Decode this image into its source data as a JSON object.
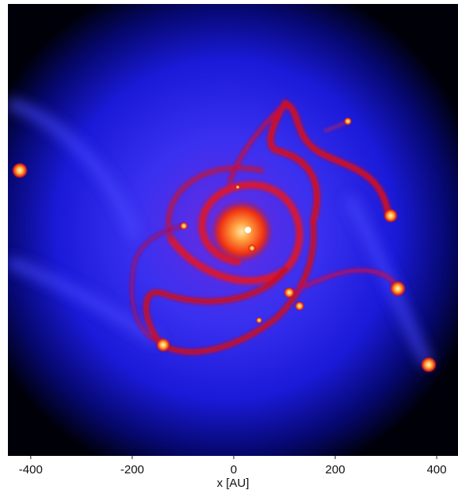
{
  "chart_data": {
    "type": "image",
    "x_label": "x [AU]",
    "xlim": [
      -445,
      442
    ],
    "xticks": [
      -400,
      -200,
      0,
      200,
      400
    ]
  }
}
